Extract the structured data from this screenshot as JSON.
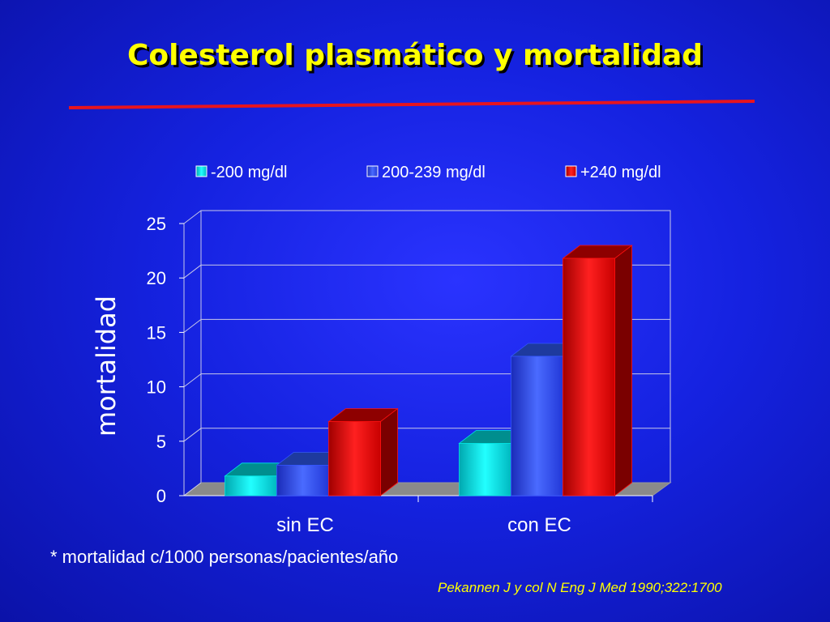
{
  "slide": {
    "title": "Colesterol plasmático y mortalidad",
    "footnote": "* mortalidad c/1000 personas/pacientes/año",
    "citation": "Pekannen J y col N Eng J Med 1990;322:1700",
    "rule_color": "#e8141e",
    "title_color": "#ffff00"
  },
  "chart_data": {
    "type": "bar",
    "style": "3d-clustered",
    "categories": [
      "sin EC",
      "con EC"
    ],
    "series": [
      {
        "name": "-200 mg/dl",
        "values": [
          1.8,
          4.8
        ],
        "color": "#00e5e5"
      },
      {
        "name": "200-239 mg/dl",
        "values": [
          2.8,
          12.8
        ],
        "color": "#3355ff"
      },
      {
        "name": "+240 mg/dl",
        "values": [
          6.8,
          21.8
        ],
        "color": "#ff1010"
      }
    ],
    "title": "",
    "xlabel": "",
    "ylabel": "mortalidad",
    "ylim": [
      0,
      25
    ],
    "yticks": [
      0,
      5,
      10,
      15,
      20,
      25
    ],
    "grid": true,
    "legend_position": "top"
  }
}
